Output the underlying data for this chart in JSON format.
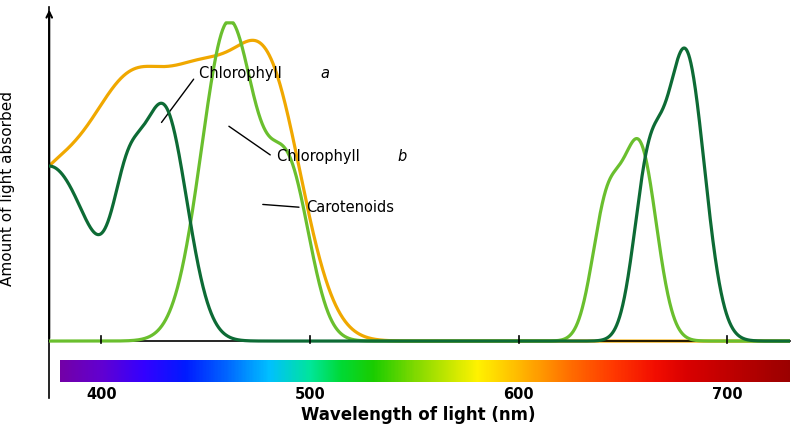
{
  "title": "",
  "xlabel": "Wavelength of light (nm)",
  "ylabel": "Amount of light absorbed",
  "xlim": [
    375,
    730
  ],
  "ylim": [
    0,
    1.05
  ],
  "background_color": "#ffffff",
  "xlabel_fontsize": 12,
  "ylabel_fontsize": 11,
  "chlorophyll_a_color": "#0d6b35",
  "chlorophyll_b_color": "#6abf2e",
  "carotenoids_color": "#f0a800",
  "tick_labels": [
    400,
    500,
    600,
    700
  ],
  "spectrum_stops": [
    [
      380,
      [
        0.45,
        0.0,
        0.65
      ]
    ],
    [
      400,
      [
        0.38,
        0.0,
        0.82
      ]
    ],
    [
      420,
      [
        0.2,
        0.0,
        1.0
      ]
    ],
    [
      440,
      [
        0.0,
        0.1,
        1.0
      ]
    ],
    [
      460,
      [
        0.0,
        0.4,
        1.0
      ]
    ],
    [
      480,
      [
        0.0,
        0.75,
        1.0
      ]
    ],
    [
      500,
      [
        0.0,
        0.9,
        0.6
      ]
    ],
    [
      515,
      [
        0.0,
        0.85,
        0.2
      ]
    ],
    [
      530,
      [
        0.1,
        0.8,
        0.0
      ]
    ],
    [
      550,
      [
        0.5,
        0.85,
        0.0
      ]
    ],
    [
      565,
      [
        0.75,
        0.9,
        0.0
      ]
    ],
    [
      580,
      [
        1.0,
        0.95,
        0.0
      ]
    ],
    [
      595,
      [
        1.0,
        0.78,
        0.0
      ]
    ],
    [
      610,
      [
        1.0,
        0.6,
        0.0
      ]
    ],
    [
      625,
      [
        1.0,
        0.42,
        0.0
      ]
    ],
    [
      645,
      [
        1.0,
        0.22,
        0.0
      ]
    ],
    [
      665,
      [
        0.95,
        0.05,
        0.0
      ]
    ],
    [
      680,
      [
        0.85,
        0.0,
        0.0
      ]
    ],
    [
      700,
      [
        0.75,
        0.0,
        0.0
      ]
    ],
    [
      730,
      [
        0.6,
        0.0,
        0.0
      ]
    ]
  ]
}
